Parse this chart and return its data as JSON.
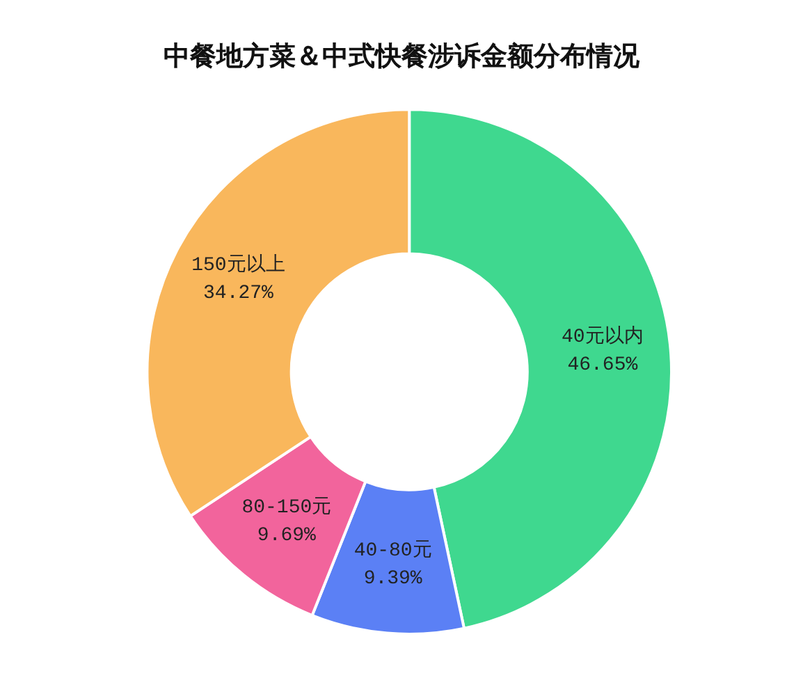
{
  "chart_data": {
    "type": "donut",
    "title": "中餐地方菜＆中式快餐涉诉金额分布情况",
    "categories": [
      "40元以内",
      "40-80元",
      "80-150元",
      "150元以上"
    ],
    "values": [
      46.65,
      9.39,
      9.69,
      34.27
    ],
    "value_labels": [
      "46.65%",
      "9.39%",
      "9.69%",
      "34.27%"
    ],
    "colors": [
      "#3fd88f",
      "#5b80f5",
      "#f2649c",
      "#f9b75c"
    ],
    "legend": false
  }
}
